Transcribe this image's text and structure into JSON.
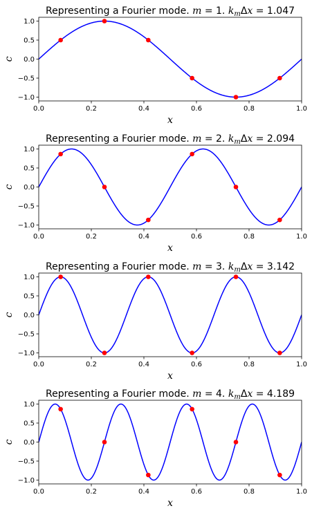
{
  "chart_data": [
    {
      "type": "line",
      "title": "Representing a Fourier mode.  m = 1.  k_mΔx = 1.047",
      "title_parts": {
        "prefix": "Representing a Fourier mode.",
        "m_sym": "m",
        "m_val": "= 1.",
        "k_sym": "k",
        "k_sub": "m",
        "dx": "Δx",
        "k_val": "= 1.047"
      },
      "m": 1,
      "xlabel": "x",
      "ylabel": "c",
      "xlim": [
        0,
        1
      ],
      "ylim": [
        -1.1,
        1.1
      ],
      "xticks": [
        "0.0",
        "0.2",
        "0.4",
        "0.6",
        "0.8",
        "1.0"
      ],
      "yticks": [
        "1.0",
        "0.5",
        "0.0",
        "-0.5",
        "-1.0"
      ],
      "grid": false,
      "series": [
        {
          "kind": "line",
          "color": "#0000ff",
          "function": "sin(2*pi*m*x)",
          "x_range": [
            0,
            1
          ]
        },
        {
          "kind": "points",
          "color": "#ff0000",
          "x": [
            0.0833,
            0.25,
            0.4167,
            0.5833,
            0.75,
            0.9167
          ],
          "y": [
            0.5,
            1.0,
            0.5,
            -0.5,
            -1.0,
            -0.5
          ]
        }
      ]
    },
    {
      "type": "line",
      "title": "Representing a Fourier mode.  m = 2.  k_mΔx = 2.094",
      "title_parts": {
        "prefix": "Representing a Fourier mode.",
        "m_sym": "m",
        "m_val": "= 2.",
        "k_sym": "k",
        "k_sub": "m",
        "dx": "Δx",
        "k_val": "= 2.094"
      },
      "m": 2,
      "xlabel": "x",
      "ylabel": "c",
      "xlim": [
        0,
        1
      ],
      "ylim": [
        -1.1,
        1.1
      ],
      "xticks": [
        "0.0",
        "0.2",
        "0.4",
        "0.6",
        "0.8",
        "1.0"
      ],
      "yticks": [
        "1.0",
        "0.5",
        "0.0",
        "-0.5",
        "-1.0"
      ],
      "grid": false,
      "series": [
        {
          "kind": "line",
          "color": "#0000ff",
          "function": "sin(2*pi*m*x)",
          "x_range": [
            0,
            1
          ]
        },
        {
          "kind": "points",
          "color": "#ff0000",
          "x": [
            0.0833,
            0.25,
            0.4167,
            0.5833,
            0.75,
            0.9167
          ],
          "y": [
            0.866,
            0.0,
            -0.866,
            0.866,
            0.0,
            -0.866
          ]
        }
      ]
    },
    {
      "type": "line",
      "title": "Representing a Fourier mode.  m = 3.  k_mΔx = 3.142",
      "title_parts": {
        "prefix": "Representing a Fourier mode.",
        "m_sym": "m",
        "m_val": "= 3.",
        "k_sym": "k",
        "k_sub": "m",
        "dx": "Δx",
        "k_val": "= 3.142"
      },
      "m": 3,
      "xlabel": "x",
      "ylabel": "c",
      "xlim": [
        0,
        1
      ],
      "ylim": [
        -1.1,
        1.1
      ],
      "xticks": [
        "0.0",
        "0.2",
        "0.4",
        "0.6",
        "0.8",
        "1.0"
      ],
      "yticks": [
        "1.0",
        "0.5",
        "0.0",
        "-0.5",
        "-1.0"
      ],
      "grid": false,
      "series": [
        {
          "kind": "line",
          "color": "#0000ff",
          "function": "sin(2*pi*m*x)",
          "x_range": [
            0,
            1
          ]
        },
        {
          "kind": "points",
          "color": "#ff0000",
          "x": [
            0.0833,
            0.25,
            0.4167,
            0.5833,
            0.75,
            0.9167
          ],
          "y": [
            1.0,
            -1.0,
            1.0,
            -1.0,
            1.0,
            -1.0
          ]
        }
      ]
    },
    {
      "type": "line",
      "title": "Representing a Fourier mode.  m = 4.  k_mΔx = 4.189",
      "title_parts": {
        "prefix": "Representing a Fourier mode.",
        "m_sym": "m",
        "m_val": "= 4.",
        "k_sym": "k",
        "k_sub": "m",
        "dx": "Δx",
        "k_val": "= 4.189"
      },
      "m": 4,
      "xlabel": "x",
      "ylabel": "c",
      "xlim": [
        0,
        1
      ],
      "ylim": [
        -1.1,
        1.1
      ],
      "xticks": [
        "0.0",
        "0.2",
        "0.4",
        "0.6",
        "0.8",
        "1.0"
      ],
      "yticks": [
        "1.0",
        "0.5",
        "0.0",
        "-0.5",
        "-1.0"
      ],
      "grid": false,
      "series": [
        {
          "kind": "line",
          "color": "#0000ff",
          "function": "sin(2*pi*m*x)",
          "x_range": [
            0,
            1
          ]
        },
        {
          "kind": "points",
          "color": "#ff0000",
          "x": [
            0.0833,
            0.25,
            0.4167,
            0.5833,
            0.75,
            0.9167
          ],
          "y": [
            0.866,
            0.0,
            -0.866,
            0.866,
            0.0,
            -0.866
          ]
        }
      ]
    }
  ]
}
